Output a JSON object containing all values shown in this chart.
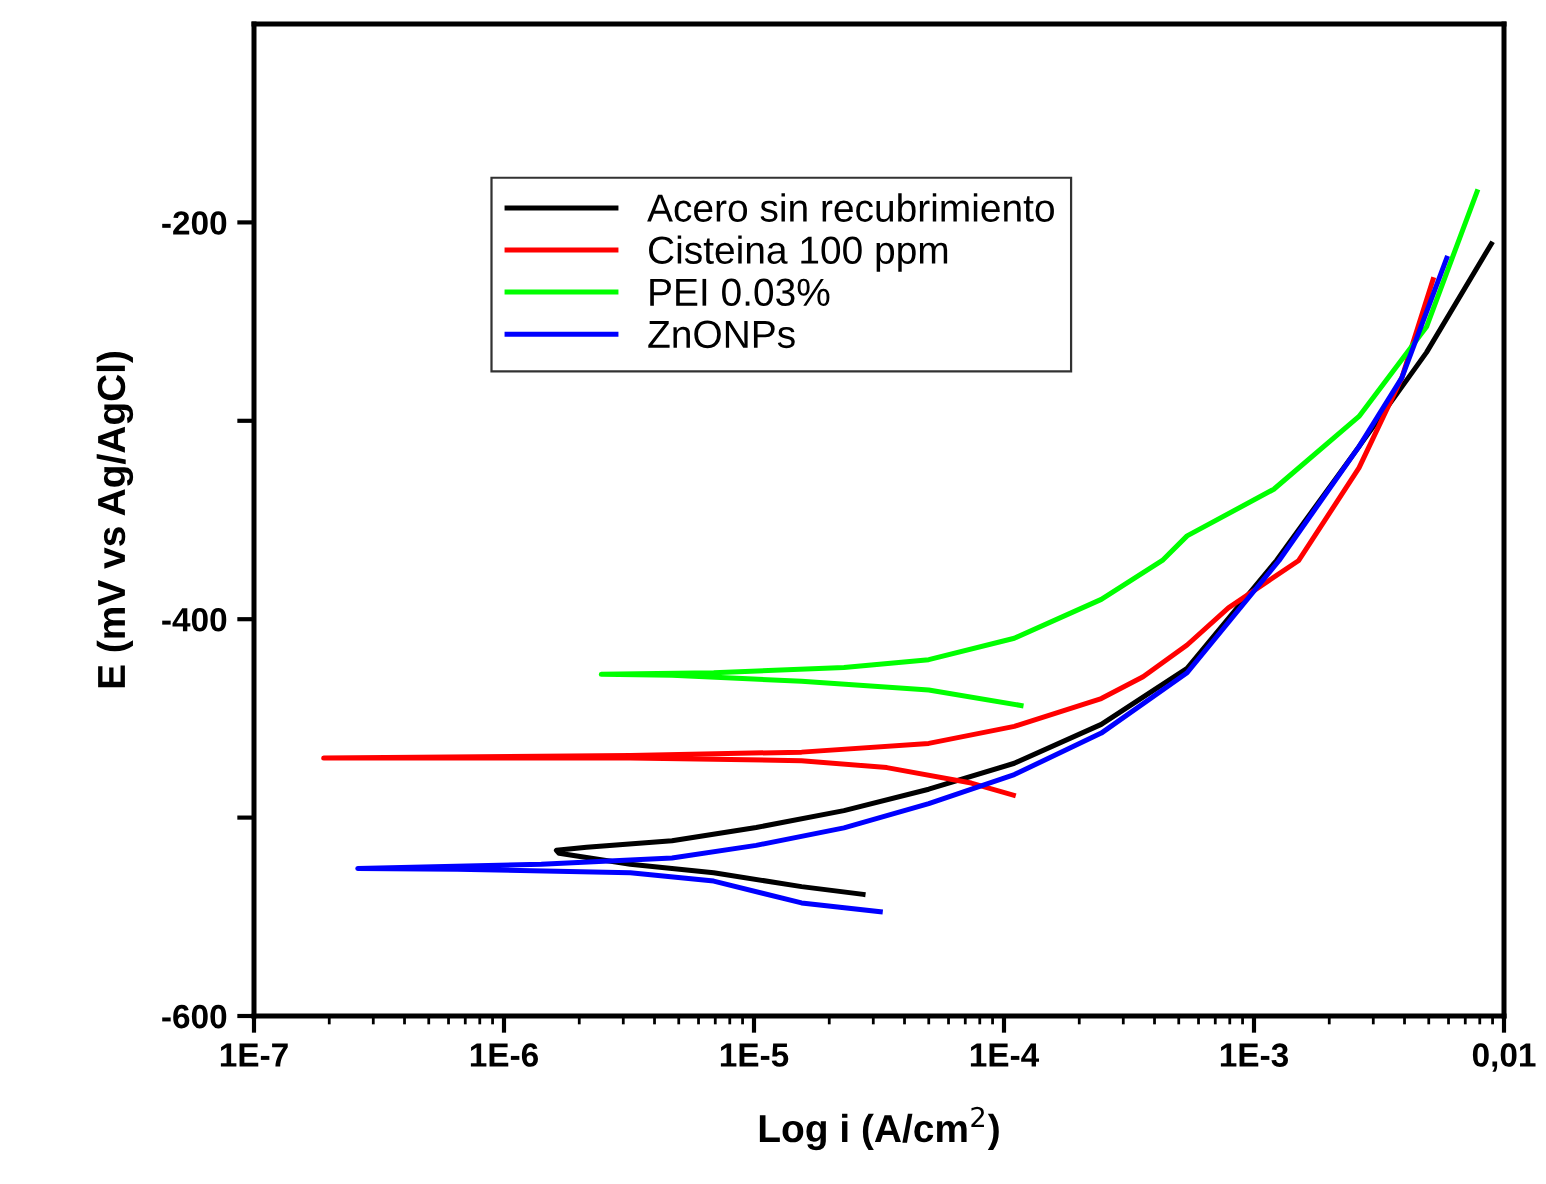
{
  "chart_data": {
    "type": "line",
    "xlabel": "Log i (A/cm$^{2}$)",
    "ylabel": "E (mV vs Ag/AgCl)",
    "log": "x",
    "grid": false,
    "legend": "top left",
    "marker": "none",
    "line_style": "solid",
    "xlim": [
      1e-07,
      0.01
    ],
    "xticks": [
      {
        "value": 1e-07,
        "label": "1E-7"
      },
      {
        "value": 1e-06,
        "label": "1E-6"
      },
      {
        "value": 1e-05,
        "label": "1E-5"
      },
      {
        "value": 0.0001,
        "label": "1E-4"
      },
      {
        "value": 0.001,
        "label": "1E-3"
      },
      {
        "value": 0.01,
        "label": "0,01"
      }
    ],
    "ylim": [
      -600,
      -100
    ],
    "yticks": [
      -600,
      {
        "value": -500,
        "label": null
      },
      -400,
      {
        "value": -300,
        "label": null
      },
      -200
    ],
    "series": [
      {
        "name": "Acero sin recubrimiento",
        "color": "#000000",
        "x": [
          2.73e-05,
          1.55e-05,
          6.9e-06,
          3.2e-06,
          1.66e-06,
          1.62e-06,
          2.14e-06,
          4.7e-06,
          1.02e-05,
          2.29e-05,
          5e-05,
          0.00011,
          0.000245,
          0.00054,
          0.00123,
          0.00263,
          0.0049,
          0.0089
        ],
        "values": [
          -538.7,
          -534.8,
          -527.8,
          -523.5,
          -518,
          -516.5,
          -515,
          -511.7,
          -505,
          -496.5,
          -485.7,
          -472.6,
          -453,
          -424.8,
          -370.4,
          -313,
          -265.5,
          -210.8
        ]
      },
      {
        "name": "Cisteina 100 ppm",
        "color": "#ff0000",
        "x": [
          0.000109,
          7.4e-05,
          3.4e-05,
          1.55e-05,
          3.2e-06,
          1.9e-07,
          3.2e-06,
          1.55e-05,
          5e-05,
          0.00011,
          0.000245,
          0.00036,
          0.00054,
          0.00079,
          0.00151,
          0.00263,
          0.0039,
          0.0052
        ],
        "values": [
          -488.7,
          -482.6,
          -474.8,
          -471.3,
          -470,
          -470,
          -468.7,
          -467,
          -462.6,
          -454,
          -440,
          -429,
          -413,
          -394.3,
          -370.4,
          -323.7,
          -278.4,
          -228.9
        ]
      },
      {
        "name": "PEI 0.03%",
        "color": "#00ff00",
        "x": [
          0.000117,
          5e-05,
          1.55e-05,
          4.7e-06,
          2.45e-06,
          6.9e-06,
          2.29e-05,
          5e-05,
          0.00011,
          0.000245,
          0.00043,
          0.00054,
          0.0012,
          0.00263,
          0.0049,
          0.0078
        ],
        "values": [
          -443.5,
          -435.7,
          -431.3,
          -428.3,
          -427.8,
          -427,
          -424.3,
          -420.4,
          -409.6,
          -390,
          -370.4,
          -358,
          -334.5,
          -297.8,
          -252.6,
          -184.5
        ]
      },
      {
        "name": "ZnONPs",
        "color": "#0000ff",
        "x": [
          3.2e-05,
          1.55e-05,
          6.9e-06,
          3.2e-06,
          6.5e-07,
          2.6e-07,
          1.41e-06,
          4.7e-06,
          1.02e-05,
          2.29e-05,
          5e-05,
          0.00011,
          0.000245,
          0.00054,
          0.00126,
          0.00263,
          0.0039,
          0.0059
        ],
        "values": [
          -547.4,
          -543,
          -532,
          -527.8,
          -526,
          -525.7,
          -523.5,
          -520.4,
          -514,
          -505.2,
          -493,
          -478.3,
          -457.4,
          -427,
          -370.4,
          -313,
          -278.4,
          -218
        ]
      }
    ]
  }
}
